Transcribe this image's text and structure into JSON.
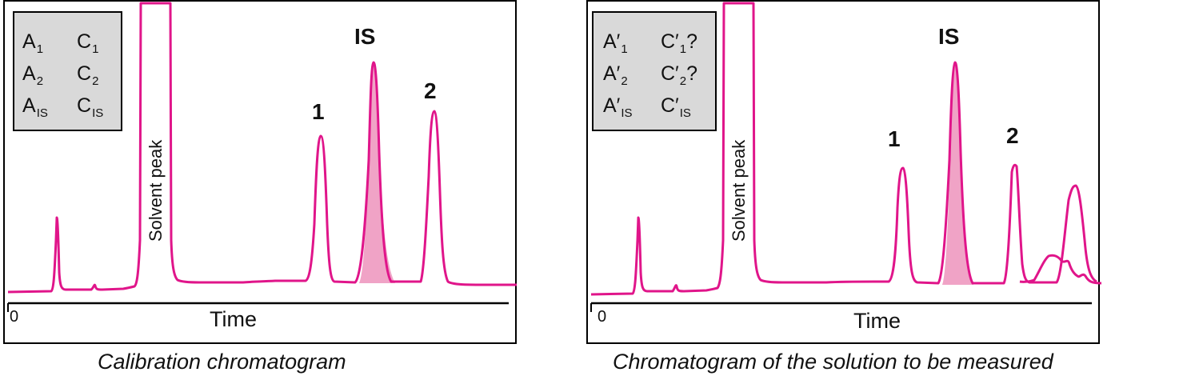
{
  "left": {
    "legend": [
      {
        "a": "A",
        "a_sub": "1",
        "c": "C",
        "c_sub": "1"
      },
      {
        "a": "A",
        "a_sub": "2",
        "c": "C",
        "c_sub": "2"
      },
      {
        "a": "A",
        "a_sub": "IS",
        "c": "C",
        "c_sub": "IS"
      }
    ],
    "solvent_label": "Solvent peak",
    "peak_1": "1",
    "peak_is": "IS",
    "peak_2": "2",
    "axis_zero": "0",
    "axis_label": "Time",
    "caption": "Calibration chromatogram"
  },
  "right": {
    "legend": [
      {
        "a": "A′",
        "a_sub": "1",
        "c": "C′",
        "c_sub": "1",
        "c_suffix": "?"
      },
      {
        "a": "A′",
        "a_sub": "2",
        "c": "C′",
        "c_sub": "2",
        "c_suffix": "?"
      },
      {
        "a": "A′",
        "a_sub": "IS",
        "c": "C′",
        "c_sub": "IS",
        "c_suffix": ""
      }
    ],
    "solvent_label": "Solvent peak",
    "peak_1": "1",
    "peak_is": "IS",
    "peak_2": "2",
    "axis_zero": "0",
    "axis_label": "Time",
    "caption": "Chromatogram of the solution to be measured"
  },
  "colors": {
    "trace": "#e0158a",
    "is_fill": "#f0a3c6",
    "legend_bg": "#d9d9d9"
  }
}
